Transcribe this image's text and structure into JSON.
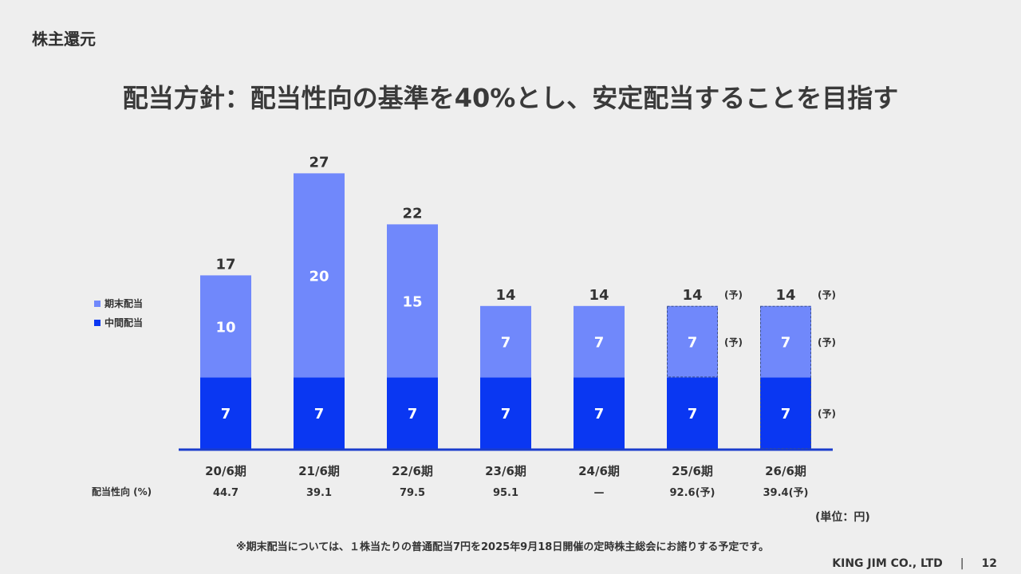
{
  "header": {
    "section": "株主還元",
    "title": "配当方針：配当性向の基準を40%とし、安定配当することを目指す"
  },
  "legend": {
    "year_end": "期末配当",
    "interim": "中間配当"
  },
  "payout_ratio_label": "配当性向 (%)",
  "unit": "(単位：円)",
  "forecast_mark": "(予)",
  "footnote": "※期末配当については、１株当たりの普通配当7円を2025年9月18日開催の定時株主総会にお諮りする予定です。",
  "footer": {
    "company": "KING JIM CO., LTD",
    "separator": "|",
    "page": "12"
  },
  "colors": {
    "interim": "#0a37f2",
    "year_end": "#7088fb",
    "baseline": "#1a3ccc",
    "text": "#333333",
    "bar_label": "#ffffff"
  },
  "chart_data": {
    "type": "bar",
    "stacked": true,
    "categories": [
      "20/6期",
      "21/6期",
      "22/6期",
      "23/6期",
      "24/6期",
      "25/6期",
      "26/6期"
    ],
    "series": [
      {
        "name": "中間配当",
        "values": [
          7,
          7,
          7,
          7,
          7,
          7,
          7
        ]
      },
      {
        "name": "期末配当",
        "values": [
          10,
          20,
          15,
          7,
          7,
          7,
          7
        ]
      }
    ],
    "totals": [
      17,
      27,
      22,
      14,
      14,
      14,
      14
    ],
    "forecast": [
      false,
      false,
      false,
      false,
      false,
      "partial",
      true
    ],
    "payout_ratio": [
      "44.7",
      "39.1",
      "79.5",
      "95.1",
      "—",
      "92.6(予)",
      "39.4(予)"
    ],
    "ylim": [
      0,
      27
    ],
    "legend_position": "left"
  }
}
